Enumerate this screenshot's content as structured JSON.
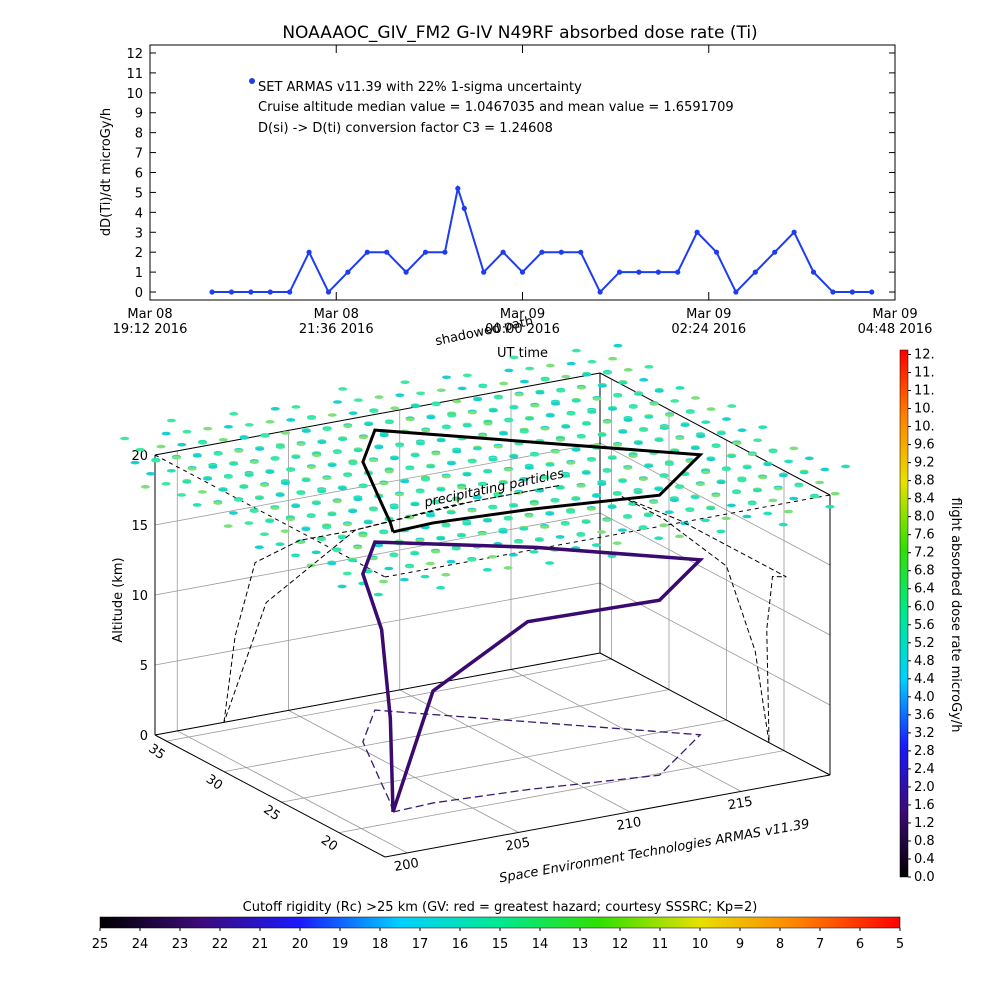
{
  "chart_data": [
    {
      "type": "line",
      "title": "NOAAAOC_GIV_FM2 G-IV   N49RF  absorbed dose rate (Ti)",
      "ylabel": "dD(Ti)/dt microGy/h",
      "xlabel": "UT time",
      "annotations": [
        "Cruise altitude median value = 1.0467035 and mean value = 1.6591709",
        "D(si) -> D(ti) conversion factor C3 = 1.24608"
      ],
      "x": [
        "2016-03-08 20:00",
        "2016-03-08 20:15",
        "2016-03-08 20:30",
        "2016-03-08 20:45",
        "2016-03-08 21:00",
        "2016-03-08 21:15",
        "2016-03-08 21:30",
        "2016-03-08 21:45",
        "2016-03-08 22:00",
        "2016-03-08 22:15",
        "2016-03-08 22:30",
        "2016-03-08 22:45",
        "2016-03-08 23:00",
        "2016-03-08 23:10",
        "2016-03-08 23:15",
        "2016-03-08 23:30",
        "2016-03-08 23:45",
        "2016-03-09 00:00",
        "2016-03-09 00:15",
        "2016-03-09 00:30",
        "2016-03-09 00:45",
        "2016-03-09 01:00",
        "2016-03-09 01:15",
        "2016-03-09 01:30",
        "2016-03-09 01:45",
        "2016-03-09 02:00",
        "2016-03-09 02:15",
        "2016-03-09 02:30",
        "2016-03-09 02:45",
        "2016-03-09 03:00",
        "2016-03-09 03:15",
        "2016-03-09 03:30",
        "2016-03-09 03:45",
        "2016-03-09 04:00",
        "2016-03-09 04:15",
        "2016-03-09 04:30"
      ],
      "series": [
        {
          "name": "SET ARMAS v11.39 with 22% 1-sigma uncertainty",
          "color": "#1e3cf0",
          "values": [
            0,
            0,
            0,
            0,
            0,
            2,
            0,
            1,
            2,
            2,
            1,
            2,
            2,
            5.2,
            4.2,
            1,
            2,
            1,
            2,
            2,
            2,
            0,
            1,
            1,
            1,
            1,
            3,
            2,
            0,
            1,
            2,
            3,
            1,
            0,
            0,
            0
          ]
        }
      ],
      "xlim": [
        "2016-03-08 19:12",
        "2016-03-09 04:48"
      ],
      "xticks": [
        {
          "value": "2016-03-08 19:12",
          "label": "Mar 08\n19:12 2016"
        },
        {
          "value": "2016-03-08 21:36",
          "label": "Mar 08\n21:36 2016"
        },
        {
          "value": "2016-03-09 00:00",
          "label": "Mar 09\n00:00 2016"
        },
        {
          "value": "2016-03-09 02:24",
          "label": "Mar 09\n02:24 2016"
        },
        {
          "value": "2016-03-09 04:48",
          "label": "Mar 09\n04:48 2016"
        }
      ],
      "ylim": [
        -0.4,
        12.4
      ],
      "yticks": [
        0,
        1,
        2,
        3,
        4,
        5,
        6,
        7,
        8,
        9,
        10,
        11,
        12
      ]
    },
    {
      "type": "scatter3d",
      "zlabel": "Altitude (km)",
      "credit": "Space Environment Technologies ARMAS v11.39",
      "annotations": [
        "shadowed path",
        "precipitating particles"
      ],
      "xlim": [
        199,
        219
      ],
      "xticks": [
        200,
        205,
        210,
        215
      ],
      "ylim": [
        16,
        36
      ],
      "yticks": [
        20,
        25,
        30,
        35
      ],
      "zlim": [
        0,
        20
      ],
      "zticks": [
        0,
        5,
        10,
        15,
        20
      ],
      "series": [
        {
          "color": "#3a0a70",
          "x": [
            202.1,
            202.6,
            203.5,
            205.5,
            207.9,
            212.5,
            217.2,
            213.3,
            208.0,
            204.0,
            202.1
          ],
          "y": [
            21.3,
            22.5,
            25.0,
            30.5,
            34.1,
            29.0,
            23.8,
            19.8,
            21.0,
            21.5,
            21.3
          ],
          "z": [
            0,
            6,
            11,
            12,
            12,
            12.5,
            12.5,
            12.5,
            12,
            8,
            0
          ]
        }
      ]
    },
    {
      "type": "colorbar",
      "orientation": "vertical",
      "label": "flight absorbed dose rate microGy/h",
      "lim": [
        0,
        11.7
      ],
      "colors": [
        "#000000",
        "#3c0a78",
        "#1a1aff",
        "#00d0ff",
        "#00e890",
        "#30e000",
        "#e8e000",
        "#ff8000",
        "#ff0000"
      ],
      "ticks": [
        {
          "value": 0,
          "label": "0.0"
        },
        0.4,
        0.8,
        1.2,
        1.6,
        {
          "value": 2,
          "label": "2.0"
        },
        2.4,
        2.8,
        3.2,
        3.6,
        {
          "value": 4,
          "label": "4.0"
        },
        4.4,
        4.8,
        5.2,
        5.6,
        {
          "value": 6,
          "label": "6.0"
        },
        6.4,
        6.8,
        7.2,
        7.6,
        {
          "value": 8,
          "label": "8.0"
        },
        8.4,
        8.8,
        9.2,
        9.6,
        {
          "value": 10,
          "label": "10."
        },
        {
          "value": 10.4,
          "label": "10."
        },
        {
          "value": 10.8,
          "label": "11."
        },
        {
          "value": 11.2,
          "label": "11."
        },
        {
          "value": 11.6,
          "label": "12."
        }
      ]
    },
    {
      "type": "colorbar",
      "orientation": "horizontal",
      "label": "Cutoff rigidity (Rc) >25 km (GV: red = greatest hazard; courtesy SSSRC; Kp=2)",
      "lim": [
        25,
        5
      ],
      "colors": [
        "#000000",
        "#3c0a78",
        "#1a1aff",
        "#00d0ff",
        "#00e890",
        "#30e000",
        "#e8e000",
        "#ff8000",
        "#ff0000"
      ],
      "ticks": [
        25,
        24,
        23,
        22,
        21,
        20,
        19,
        18,
        17,
        16,
        15,
        14,
        13,
        12,
        11,
        10,
        9,
        8,
        7,
        6,
        5
      ]
    }
  ]
}
